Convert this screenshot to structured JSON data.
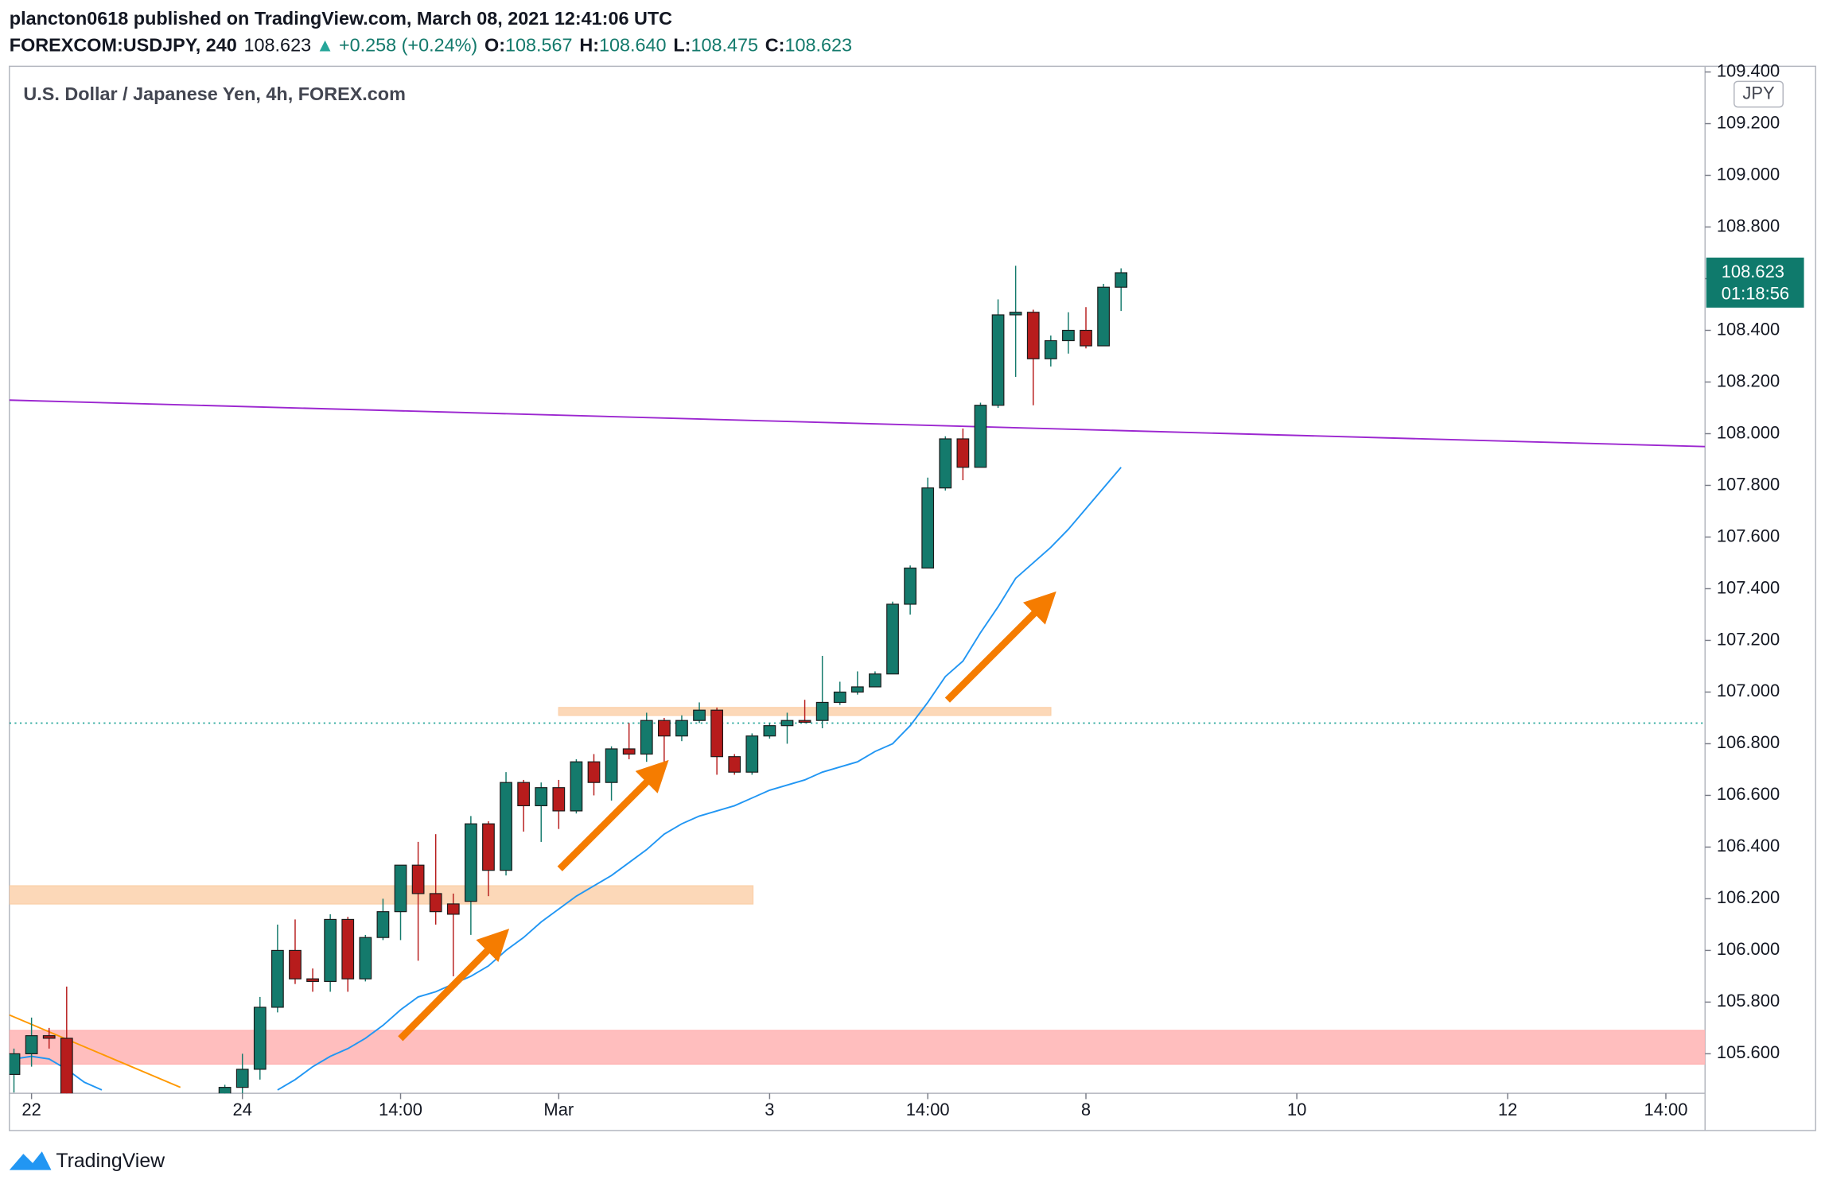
{
  "header": {
    "publisher": "plancton0618 published on TradingView.com, March 08, 2021 12:41:06 UTC",
    "symbol": "FOREXCOM:USDJPY, 240",
    "last": "108.623",
    "arrow": "▲",
    "change": "+0.258 (+0.24%)",
    "o_label": "O:",
    "o": "108.567",
    "h_label": "H:",
    "h": "108.640",
    "l_label": "L:",
    "l": "108.475",
    "c_label": "C:",
    "c": "108.623"
  },
  "chart_data": {
    "type": "candlestick",
    "title": "U.S. Dollar / Japanese Yen, 4h, FOREX.com",
    "currency": "JPY",
    "last_price_label": "108.623",
    "countdown": "01:18:56",
    "up_color": "#147a6c",
    "down_color": "#b71c1c",
    "grid": false,
    "xlim": [
      -0.26,
      96.23
    ],
    "ylim": [
      105.447,
      109.422
    ],
    "xticks": [
      {
        "value": 1,
        "label": "22"
      },
      {
        "value": 13,
        "label": "24"
      },
      {
        "value": 22,
        "label": "14:00"
      },
      {
        "value": 31,
        "label": "Mar"
      },
      {
        "value": 43,
        "label": "3"
      },
      {
        "value": 52,
        "label": "14:00"
      },
      {
        "value": 61,
        "label": "8"
      },
      {
        "value": 73,
        "label": "10"
      },
      {
        "value": 85,
        "label": "12"
      },
      {
        "value": 94,
        "label": "14:00"
      }
    ],
    "yticks": [
      {
        "value": 105.6,
        "label": "105.600"
      },
      {
        "value": 105.8,
        "label": "105.800"
      },
      {
        "value": 106.0,
        "label": "106.000"
      },
      {
        "value": 106.2,
        "label": "106.200"
      },
      {
        "value": 106.4,
        "label": "106.400"
      },
      {
        "value": 106.6,
        "label": "106.600"
      },
      {
        "value": 106.8,
        "label": "106.800"
      },
      {
        "value": 107.0,
        "label": "107.000"
      },
      {
        "value": 107.2,
        "label": "107.200"
      },
      {
        "value": 107.4,
        "label": "107.400"
      },
      {
        "value": 107.6,
        "label": "107.600"
      },
      {
        "value": 107.8,
        "label": "107.800"
      },
      {
        "value": 108.0,
        "label": "108.000"
      },
      {
        "value": 108.2,
        "label": "108.200"
      },
      {
        "value": 108.4,
        "label": "108.400"
      },
      {
        "value": 108.6,
        "label": "108.600"
      },
      {
        "value": 108.8,
        "label": "108.800"
      },
      {
        "value": 109.0,
        "label": "109.000"
      },
      {
        "value": 109.2,
        "label": "109.200"
      },
      {
        "value": 109.4,
        "label": "109.400"
      }
    ],
    "candles": {
      "x": [
        0,
        1,
        2,
        3,
        12,
        13,
        14,
        15,
        16,
        17,
        18,
        19,
        20,
        21,
        22,
        23,
        24,
        25,
        26,
        27,
        28,
        29,
        30,
        31,
        32,
        33,
        34,
        35,
        36,
        37,
        38,
        39,
        40,
        41,
        42,
        43,
        44,
        45,
        46,
        47,
        48,
        49,
        50,
        51,
        52,
        53,
        54,
        55,
        56,
        57,
        58,
        59,
        60,
        61,
        62,
        63
      ],
      "open": [
        105.52,
        105.6,
        105.67,
        105.66,
        105.4,
        105.47,
        105.54,
        105.78,
        106.0,
        105.89,
        105.88,
        106.12,
        105.89,
        106.05,
        106.15,
        106.33,
        106.22,
        106.18,
        106.19,
        106.49,
        106.31,
        106.65,
        106.56,
        106.63,
        106.54,
        106.73,
        106.65,
        106.78,
        106.76,
        106.89,
        106.83,
        106.89,
        106.93,
        106.75,
        106.69,
        106.83,
        106.87,
        106.89,
        106.89,
        106.96,
        107.0,
        107.02,
        107.07,
        107.34,
        107.48,
        107.79,
        107.98,
        107.87,
        108.11,
        108.46,
        108.47,
        108.29,
        108.36,
        108.4,
        108.34,
        108.567
      ],
      "high": [
        105.62,
        105.74,
        105.7,
        105.86,
        105.48,
        105.6,
        105.82,
        106.1,
        106.12,
        105.93,
        106.14,
        106.13,
        106.06,
        106.2,
        106.33,
        106.42,
        106.45,
        106.22,
        106.52,
        106.5,
        106.69,
        106.66,
        106.65,
        106.66,
        106.74,
        106.76,
        106.79,
        106.88,
        106.92,
        106.9,
        106.91,
        106.96,
        106.94,
        106.76,
        106.84,
        106.88,
        106.92,
        106.97,
        107.14,
        107.04,
        107.08,
        107.08,
        107.35,
        107.49,
        107.83,
        107.99,
        108.02,
        108.12,
        108.52,
        108.65,
        108.48,
        108.38,
        108.47,
        108.49,
        108.58,
        108.64
      ],
      "low": [
        105.45,
        105.55,
        105.62,
        105.4,
        105.35,
        105.4,
        105.5,
        105.76,
        105.87,
        105.84,
        105.84,
        105.84,
        105.88,
        106.04,
        106.04,
        105.96,
        106.1,
        105.9,
        106.06,
        106.21,
        106.29,
        106.46,
        106.42,
        106.47,
        106.53,
        106.6,
        106.58,
        106.74,
        106.73,
        106.72,
        106.81,
        106.88,
        106.68,
        106.68,
        106.68,
        106.82,
        106.8,
        106.88,
        106.86,
        106.95,
        106.99,
        107.02,
        107.07,
        107.3,
        107.48,
        107.78,
        107.82,
        107.87,
        108.1,
        108.22,
        108.11,
        108.26,
        108.31,
        108.33,
        108.34,
        108.475
      ],
      "close": [
        105.6,
        105.67,
        105.66,
        105.4,
        105.47,
        105.54,
        105.78,
        106.0,
        105.89,
        105.88,
        106.12,
        105.89,
        106.05,
        106.15,
        106.33,
        106.22,
        106.15,
        106.14,
        106.49,
        106.31,
        106.65,
        106.56,
        106.63,
        106.54,
        106.73,
        106.65,
        106.78,
        106.76,
        106.89,
        106.83,
        106.89,
        106.93,
        106.75,
        106.69,
        106.83,
        106.87,
        106.89,
        106.885,
        106.96,
        107.0,
        107.02,
        107.07,
        107.34,
        107.48,
        107.79,
        107.98,
        107.87,
        108.11,
        108.46,
        108.47,
        108.29,
        108.36,
        108.4,
        108.34,
        108.567,
        108.623
      ]
    },
    "ma": {
      "color": "#2196f3",
      "x": [
        0,
        1,
        2,
        3,
        4,
        5,
        6,
        7,
        8,
        9,
        10,
        11,
        12,
        13,
        14,
        15,
        16,
        17,
        18,
        19,
        20,
        21,
        22,
        23,
        24,
        25,
        26,
        27,
        28,
        29,
        30,
        31,
        32,
        33,
        34,
        35,
        36,
        37,
        38,
        39,
        40,
        41,
        42,
        43,
        44,
        45,
        46,
        47,
        48,
        49,
        50,
        51,
        52,
        53,
        54,
        55,
        56,
        57,
        58,
        59,
        60,
        61,
        62,
        63
      ],
      "values": [
        105.58,
        105.59,
        105.58,
        105.54,
        105.49,
        105.46,
        null,
        null,
        null,
        null,
        null,
        null,
        null,
        null,
        null,
        105.46,
        105.5,
        105.55,
        105.59,
        105.62,
        105.66,
        105.71,
        105.77,
        105.82,
        105.84,
        105.87,
        105.9,
        105.94,
        106.0,
        106.05,
        106.11,
        106.16,
        106.21,
        106.25,
        106.29,
        106.34,
        106.39,
        106.45,
        106.49,
        106.52,
        106.54,
        106.56,
        106.59,
        106.62,
        106.64,
        106.66,
        106.69,
        106.71,
        106.73,
        106.77,
        106.8,
        106.87,
        106.96,
        107.06,
        107.12,
        107.23,
        107.33,
        107.44,
        107.5,
        107.56,
        107.63,
        107.71,
        107.79,
        107.87
      ]
    },
    "trendlines": [
      {
        "color": "#ff9800",
        "x": [
          -0.26,
          9.47
        ],
        "values": [
          105.75,
          105.47
        ]
      },
      {
        "color": "#9c27d0",
        "x": [
          -0.26,
          96.23
        ],
        "values": [
          108.13,
          107.95
        ]
      }
    ],
    "hline": {
      "color": "#26a69a",
      "value": 106.88
    },
    "zones": [
      {
        "color": "#fbd1ab",
        "x": [
          -0.26,
          42.05
        ],
        "values": [
          106.18,
          106.25
        ]
      },
      {
        "color": "#fbd1ab",
        "x": [
          31.0,
          59.0
        ],
        "values": [
          106.91,
          106.94
        ]
      },
      {
        "color": "#ffb3b3",
        "x": [
          -0.26,
          96.23
        ],
        "values": [
          105.56,
          105.69
        ]
      }
    ]
  }
}
